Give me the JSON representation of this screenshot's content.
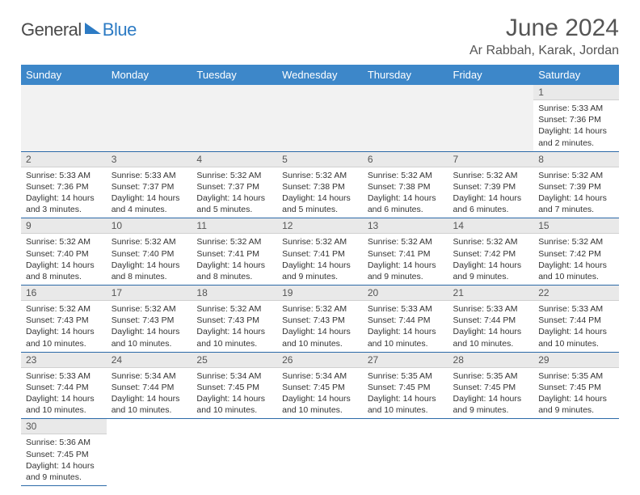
{
  "logo": {
    "part1": "General",
    "part2": "Blue"
  },
  "title": "June 2024",
  "location": "Ar Rabbah, Karak, Jordan",
  "colors": {
    "header_bg": "#3d87c9",
    "header_text": "#ffffff",
    "daynum_bg": "#e9e9e9",
    "border": "#2c6aa8",
    "logo_blue": "#2d7bc4",
    "text": "#333333"
  },
  "weekdays": [
    "Sunday",
    "Monday",
    "Tuesday",
    "Wednesday",
    "Thursday",
    "Friday",
    "Saturday"
  ],
  "weeks": [
    [
      null,
      null,
      null,
      null,
      null,
      null,
      {
        "n": "1",
        "sr": "5:33 AM",
        "ss": "7:36 PM",
        "dl": "14 hours and 2 minutes."
      }
    ],
    [
      {
        "n": "2",
        "sr": "5:33 AM",
        "ss": "7:36 PM",
        "dl": "14 hours and 3 minutes."
      },
      {
        "n": "3",
        "sr": "5:33 AM",
        "ss": "7:37 PM",
        "dl": "14 hours and 4 minutes."
      },
      {
        "n": "4",
        "sr": "5:32 AM",
        "ss": "7:37 PM",
        "dl": "14 hours and 5 minutes."
      },
      {
        "n": "5",
        "sr": "5:32 AM",
        "ss": "7:38 PM",
        "dl": "14 hours and 5 minutes."
      },
      {
        "n": "6",
        "sr": "5:32 AM",
        "ss": "7:38 PM",
        "dl": "14 hours and 6 minutes."
      },
      {
        "n": "7",
        "sr": "5:32 AM",
        "ss": "7:39 PM",
        "dl": "14 hours and 6 minutes."
      },
      {
        "n": "8",
        "sr": "5:32 AM",
        "ss": "7:39 PM",
        "dl": "14 hours and 7 minutes."
      }
    ],
    [
      {
        "n": "9",
        "sr": "5:32 AM",
        "ss": "7:40 PM",
        "dl": "14 hours and 8 minutes."
      },
      {
        "n": "10",
        "sr": "5:32 AM",
        "ss": "7:40 PM",
        "dl": "14 hours and 8 minutes."
      },
      {
        "n": "11",
        "sr": "5:32 AM",
        "ss": "7:41 PM",
        "dl": "14 hours and 8 minutes."
      },
      {
        "n": "12",
        "sr": "5:32 AM",
        "ss": "7:41 PM",
        "dl": "14 hours and 9 minutes."
      },
      {
        "n": "13",
        "sr": "5:32 AM",
        "ss": "7:41 PM",
        "dl": "14 hours and 9 minutes."
      },
      {
        "n": "14",
        "sr": "5:32 AM",
        "ss": "7:42 PM",
        "dl": "14 hours and 9 minutes."
      },
      {
        "n": "15",
        "sr": "5:32 AM",
        "ss": "7:42 PM",
        "dl": "14 hours and 10 minutes."
      }
    ],
    [
      {
        "n": "16",
        "sr": "5:32 AM",
        "ss": "7:43 PM",
        "dl": "14 hours and 10 minutes."
      },
      {
        "n": "17",
        "sr": "5:32 AM",
        "ss": "7:43 PM",
        "dl": "14 hours and 10 minutes."
      },
      {
        "n": "18",
        "sr": "5:32 AM",
        "ss": "7:43 PM",
        "dl": "14 hours and 10 minutes."
      },
      {
        "n": "19",
        "sr": "5:32 AM",
        "ss": "7:43 PM",
        "dl": "14 hours and 10 minutes."
      },
      {
        "n": "20",
        "sr": "5:33 AM",
        "ss": "7:44 PM",
        "dl": "14 hours and 10 minutes."
      },
      {
        "n": "21",
        "sr": "5:33 AM",
        "ss": "7:44 PM",
        "dl": "14 hours and 10 minutes."
      },
      {
        "n": "22",
        "sr": "5:33 AM",
        "ss": "7:44 PM",
        "dl": "14 hours and 10 minutes."
      }
    ],
    [
      {
        "n": "23",
        "sr": "5:33 AM",
        "ss": "7:44 PM",
        "dl": "14 hours and 10 minutes."
      },
      {
        "n": "24",
        "sr": "5:34 AM",
        "ss": "7:44 PM",
        "dl": "14 hours and 10 minutes."
      },
      {
        "n": "25",
        "sr": "5:34 AM",
        "ss": "7:45 PM",
        "dl": "14 hours and 10 minutes."
      },
      {
        "n": "26",
        "sr": "5:34 AM",
        "ss": "7:45 PM",
        "dl": "14 hours and 10 minutes."
      },
      {
        "n": "27",
        "sr": "5:35 AM",
        "ss": "7:45 PM",
        "dl": "14 hours and 10 minutes."
      },
      {
        "n": "28",
        "sr": "5:35 AM",
        "ss": "7:45 PM",
        "dl": "14 hours and 9 minutes."
      },
      {
        "n": "29",
        "sr": "5:35 AM",
        "ss": "7:45 PM",
        "dl": "14 hours and 9 minutes."
      }
    ],
    [
      {
        "n": "30",
        "sr": "5:36 AM",
        "ss": "7:45 PM",
        "dl": "14 hours and 9 minutes."
      },
      null,
      null,
      null,
      null,
      null,
      null
    ]
  ],
  "labels": {
    "sunrise": "Sunrise:",
    "sunset": "Sunset:",
    "daylight": "Daylight:"
  }
}
